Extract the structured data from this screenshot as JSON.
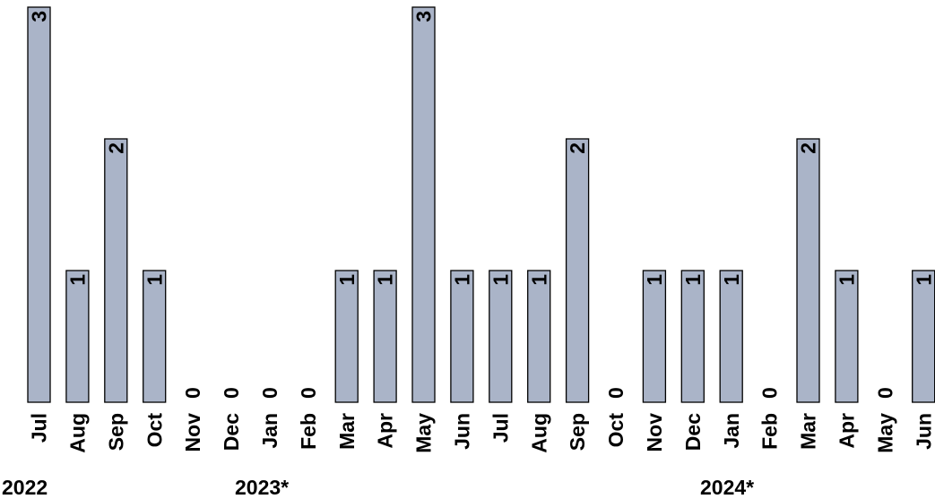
{
  "chart_data": {
    "type": "bar",
    "categories": [
      "Jul",
      "Aug",
      "Sep",
      "Oct",
      "Nov",
      "Dec",
      "Jan",
      "Feb",
      "Mar",
      "Apr",
      "May",
      "Jun",
      "Jul",
      "Aug",
      "Sep",
      "Oct",
      "Nov",
      "Dec",
      "Jan",
      "Feb",
      "Mar",
      "Apr",
      "May",
      "Jun"
    ],
    "values": [
      3,
      1,
      2,
      1,
      0,
      0,
      0,
      0,
      1,
      1,
      3,
      1,
      1,
      1,
      2,
      0,
      1,
      1,
      1,
      0,
      2,
      1,
      0,
      1
    ],
    "year_labels": [
      {
        "text": "2022",
        "category_index": 0
      },
      {
        "text": "2023*",
        "category_index": 6
      },
      {
        "text": "2024*",
        "category_index": 18
      }
    ],
    "ylim": [
      0,
      3
    ],
    "grid": false,
    "colors": {
      "bar": "#aab4c8",
      "outline": "#000000"
    }
  }
}
